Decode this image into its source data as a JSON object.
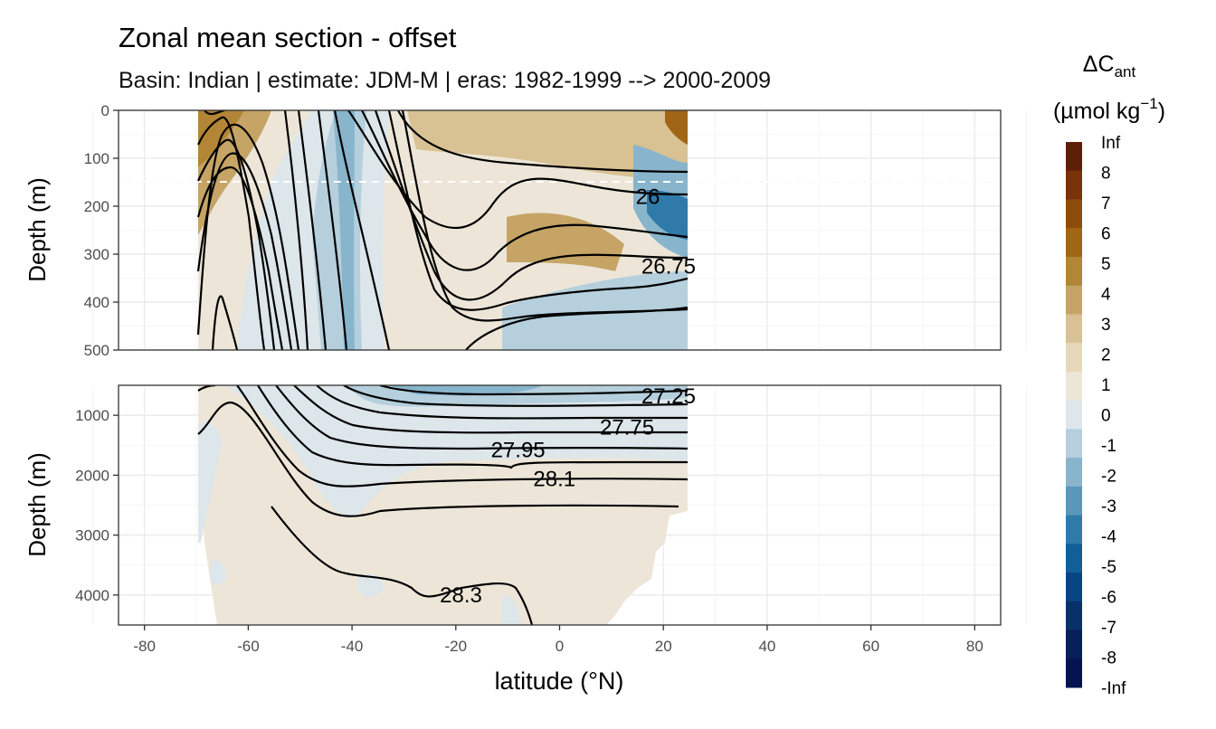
{
  "chart_data": {
    "type": "heatmap",
    "title": "Zonal mean section - offset",
    "subtitle": "Basin: Indian | estimate: JDM-M | eras: 1982-1999 --> 2000-2009",
    "xlabel": "latitude (°N)",
    "ylabel": "Depth (m)",
    "xlim": [
      -85,
      85
    ],
    "x_ticks": [
      "-80",
      "-60",
      "-40",
      "-20",
      "0",
      "20",
      "40",
      "60",
      "80"
    ],
    "x_tick_values": [
      -80,
      -60,
      -40,
      -20,
      0,
      20,
      40,
      60,
      80
    ],
    "grid": true,
    "panels": [
      {
        "name": "upper",
        "ylim": [
          0,
          500
        ],
        "y_ticks": [
          "0",
          "100",
          "200",
          "300",
          "400",
          "500"
        ],
        "y_tick_values": [
          0,
          100,
          200,
          300,
          400,
          500
        ],
        "reference_line_depth": 150
      },
      {
        "name": "lower",
        "ylim": [
          500,
          4500
        ],
        "y_ticks": [
          "1000",
          "2000",
          "3000",
          "4000"
        ],
        "y_tick_values": [
          1000,
          2000,
          3000,
          4000
        ]
      }
    ],
    "data_extent_lat": [
      -70,
      24
    ],
    "legend": {
      "title_main": "ΔC",
      "title_sub": "ant",
      "units_prefix": "(µmol kg",
      "units_sup": "−1",
      "units_suffix": ")",
      "placement": "right",
      "labels": [
        "Inf",
        "8",
        "7",
        "6",
        "5",
        "4",
        "3",
        "2",
        "1",
        "0",
        "-1",
        "-2",
        "-3",
        "-4",
        "-5",
        "-6",
        "-7",
        "-8",
        "-Inf"
      ],
      "colors": [
        "#5f1e07",
        "#7a3209",
        "#8e4c0b",
        "#a06616",
        "#b38536",
        "#c5a466",
        "#d8c193",
        "#e6d7b8",
        "#ede6d8",
        "#dde6ea",
        "#b5cfdd",
        "#88b5cc",
        "#5a98bb",
        "#2f7aa9",
        "#115f98",
        "#064584",
        "#08306b",
        "#071f5b",
        "#061352"
      ]
    },
    "contour_labels": [
      {
        "text": "26",
        "lat": 17,
        "depth": 180
      },
      {
        "text": "26.75",
        "lat": 21,
        "depth": 325
      },
      {
        "text": "27.25",
        "lat": 21,
        "depth": 680
      },
      {
        "text": "27.75",
        "lat": 13,
        "depth": 1200
      },
      {
        "text": "27.95",
        "lat": -8,
        "depth": 1580
      },
      {
        "text": "28.1",
        "lat": -1,
        "depth": 2060
      },
      {
        "text": "28.3",
        "lat": -19,
        "depth": 4000
      }
    ]
  }
}
